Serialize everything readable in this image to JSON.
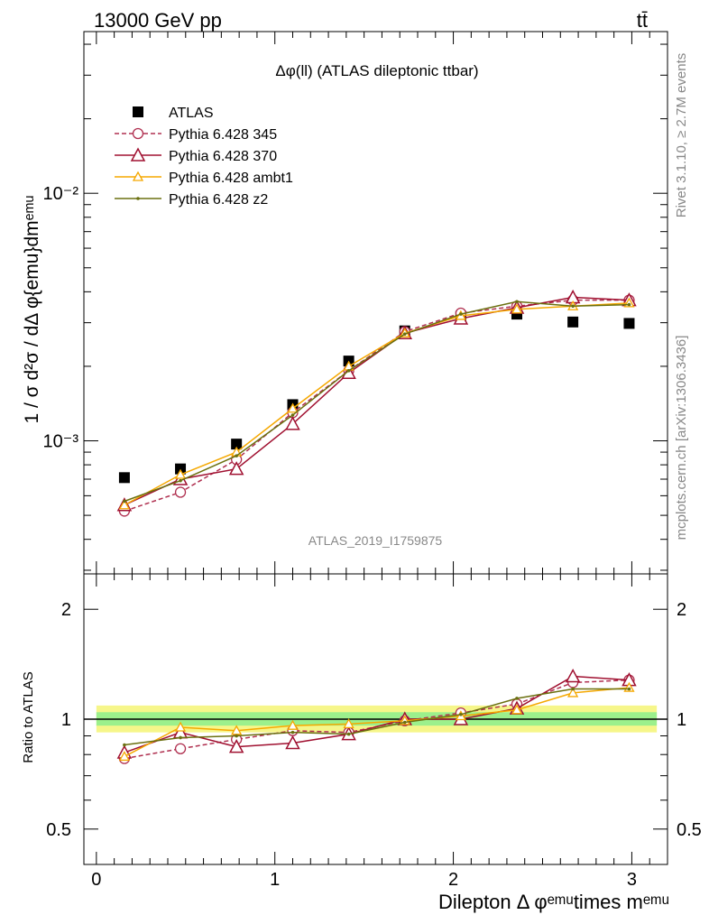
{
  "header": {
    "left": "13000 GeV pp",
    "right": "tt̄"
  },
  "side": {
    "rivet": "Rivet 3.1.10, ≥ 2.7M events",
    "site": "mcplots.cern.ch [arXiv:1306.3436]"
  },
  "chart_data": {
    "type": "line",
    "title": "Δφ(ll) (ATLAS dileptonic ttbar)",
    "analysis_id": "ATLAS_2019_I1759875",
    "ylabel_main": "1 / σ  d²σ / dΔ φ{emu}dmᵉᵐᵘ",
    "ylabel_ratio": "Ratio to ATLAS",
    "xlabel": "Dilepton Δ φᵉᵐᵘtimes mᵉᵐᵘ",
    "y_scale": "log",
    "ylim_main": [
      0.00029,
      0.045
    ],
    "ylim_ratio": [
      0.4,
      2.5
    ],
    "xlim": [
      -0.07,
      3.2
    ],
    "x_ticks": [
      "0",
      "1",
      "2",
      "3"
    ],
    "y_ticks_main": [
      "10⁻³",
      "10⁻²"
    ],
    "y_ticks_ratio": [
      "0.5",
      "1",
      "2"
    ],
    "legend_position": "top-left",
    "x": [
      0.157,
      0.471,
      0.785,
      1.1,
      1.414,
      1.728,
      2.042,
      2.356,
      2.67,
      2.985
    ],
    "series": [
      {
        "name": "ATLAS",
        "style": "data",
        "color": "#000000",
        "values": [
          0.00071,
          0.00077,
          0.00097,
          0.0014,
          0.0021,
          0.00278,
          0.00318,
          0.00325,
          0.00302,
          0.00298
        ]
      },
      {
        "name": "Pythia 6.428 345",
        "style": "dashed-circle",
        "color": "#b03050",
        "values": [
          0.00052,
          0.00062,
          0.00084,
          0.0013,
          0.00192,
          0.00276,
          0.00328,
          0.0035,
          0.0037,
          0.0037
        ],
        "ratio": [
          0.78,
          0.83,
          0.88,
          0.93,
          0.92,
          0.99,
          1.04,
          1.1,
          1.26,
          1.28
        ]
      },
      {
        "name": "Pythia 6.428 370",
        "style": "solid-triangle",
        "color": "#a01030",
        "values": [
          0.00055,
          0.0007,
          0.00077,
          0.00117,
          0.00188,
          0.00272,
          0.00312,
          0.00345,
          0.0038,
          0.0037
        ],
        "ratio": [
          0.81,
          0.92,
          0.84,
          0.86,
          0.91,
          1.0,
          1.0,
          1.07,
          1.31,
          1.28
        ]
      },
      {
        "name": "Pythia 6.428 ambt1",
        "style": "solid-triangle-small",
        "color": "#f5a800",
        "values": [
          0.00055,
          0.00073,
          0.0009,
          0.00135,
          0.002,
          0.00272,
          0.0032,
          0.0034,
          0.0035,
          0.0036
        ],
        "ratio": [
          0.79,
          0.95,
          0.93,
          0.96,
          0.97,
          0.99,
          1.02,
          1.06,
          1.18,
          1.22
        ]
      },
      {
        "name": "Pythia 6.428 z2",
        "style": "solid-dot",
        "color": "#6b7010",
        "values": [
          0.00057,
          0.00069,
          0.00087,
          0.00127,
          0.00192,
          0.0027,
          0.00325,
          0.00365,
          0.0035,
          0.00355
        ],
        "ratio": [
          0.85,
          0.89,
          0.9,
          0.92,
          0.91,
          0.98,
          1.03,
          1.14,
          1.21,
          1.21
        ]
      }
    ]
  }
}
